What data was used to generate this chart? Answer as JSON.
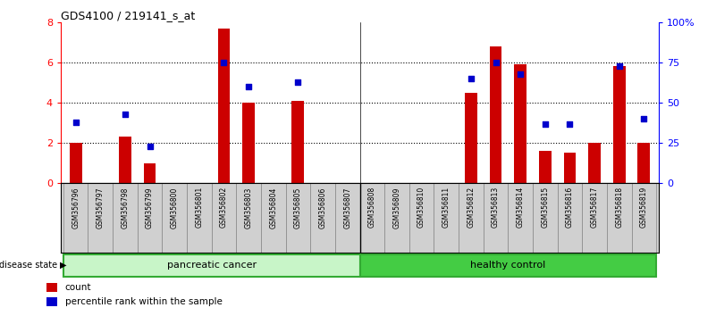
{
  "title": "GDS4100 / 219141_s_at",
  "samples": [
    "GSM356796",
    "GSM356797",
    "GSM356798",
    "GSM356799",
    "GSM356800",
    "GSM356801",
    "GSM356802",
    "GSM356803",
    "GSM356804",
    "GSM356805",
    "GSM356806",
    "GSM356807",
    "GSM356808",
    "GSM356809",
    "GSM356810",
    "GSM356811",
    "GSM356812",
    "GSM356813",
    "GSM356814",
    "GSM356815",
    "GSM356816",
    "GSM356817",
    "GSM356818",
    "GSM356819"
  ],
  "count_values": [
    2.0,
    0.0,
    2.3,
    1.0,
    0.0,
    0.0,
    7.7,
    4.0,
    0.0,
    4.1,
    0.0,
    0.0,
    0.0,
    0.0,
    0.0,
    0.0,
    4.5,
    6.8,
    5.9,
    1.6,
    1.5,
    2.0,
    5.8,
    2.0
  ],
  "percentile_values": [
    38,
    0,
    43,
    23,
    0,
    0,
    75,
    60,
    0,
    63,
    0,
    1,
    0,
    0,
    0,
    0,
    65,
    75,
    68,
    37,
    37,
    0,
    73,
    40
  ],
  "group_separator": 12,
  "ylim_left": [
    0,
    8
  ],
  "ylim_right": [
    0,
    100
  ],
  "yticks_left": [
    0,
    2,
    4,
    6,
    8
  ],
  "yticks_right": [
    0,
    25,
    50,
    75,
    100
  ],
  "ytick_labels_right": [
    "0",
    "25",
    "50",
    "75",
    "100%"
  ],
  "bar_color": "#CC0000",
  "dot_color": "#0000CC",
  "background_color": "#ffffff",
  "xtick_bg_color": "#d0d0d0",
  "pc_color": "#c8f5c8",
  "hc_color": "#44cc44",
  "legend_items": [
    {
      "label": "count",
      "color": "#CC0000"
    },
    {
      "label": "percentile rank within the sample",
      "color": "#0000CC"
    }
  ],
  "bar_width": 0.5,
  "dot_size": 20
}
